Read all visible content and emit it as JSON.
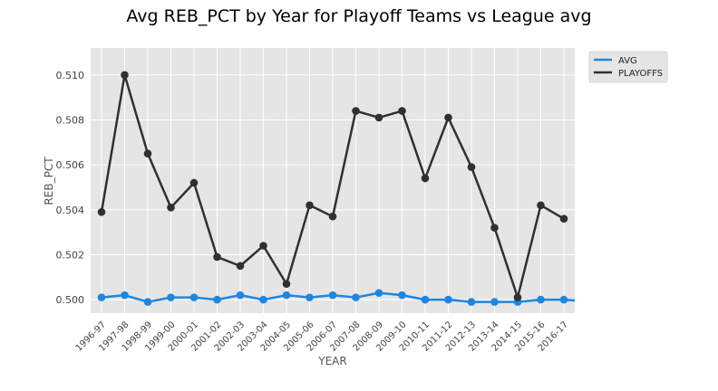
{
  "chart_data": {
    "type": "line",
    "title": "Avg REB_PCT by Year for Playoff Teams vs League avg",
    "xlabel": "YEAR",
    "ylabel": "REB_PCT",
    "categories": [
      "1996-97",
      "1997-98",
      "1998-99",
      "1999-00",
      "2000-01",
      "2001-02",
      "2002-03",
      "2003-04",
      "2004-05",
      "2005-06",
      "2006-07",
      "2007-08",
      "2008-09",
      "2009-10",
      "2010-11",
      "2011-12",
      "2012-13",
      "2013-14",
      "2014-15",
      "2015-16",
      "2016-17"
    ],
    "ylim": [
      0.4994,
      0.5112
    ],
    "yticks": [
      "0.500",
      "0.502",
      "0.504",
      "0.506",
      "0.508",
      "0.510"
    ],
    "ytick_values": [
      0.5,
      0.502,
      0.504,
      0.506,
      0.508,
      0.51
    ],
    "grid": true,
    "legend_position": "top-right outside",
    "series": [
      {
        "name": "AVG",
        "color": "#1f86e0",
        "values": [
          0.5001,
          0.5002,
          0.4999,
          0.5001,
          0.5001,
          0.5,
          0.5002,
          0.5,
          0.5002,
          0.5001,
          0.5002,
          0.5001,
          0.5003,
          0.5002,
          0.5,
          0.5,
          0.4999,
          0.4999,
          0.4999,
          0.5,
          0.5
        ]
      },
      {
        "name": "PLAYOFFS",
        "color": "#2e3133",
        "values": [
          0.5039,
          0.51,
          0.5065,
          0.5041,
          0.5052,
          0.5019,
          0.5015,
          0.5024,
          0.5007,
          0.5042,
          0.5037,
          0.5084,
          0.5081,
          0.5084,
          0.5054,
          0.5081,
          0.5059,
          0.5032,
          0.5001,
          0.5042,
          0.5036
        ]
      }
    ]
  }
}
